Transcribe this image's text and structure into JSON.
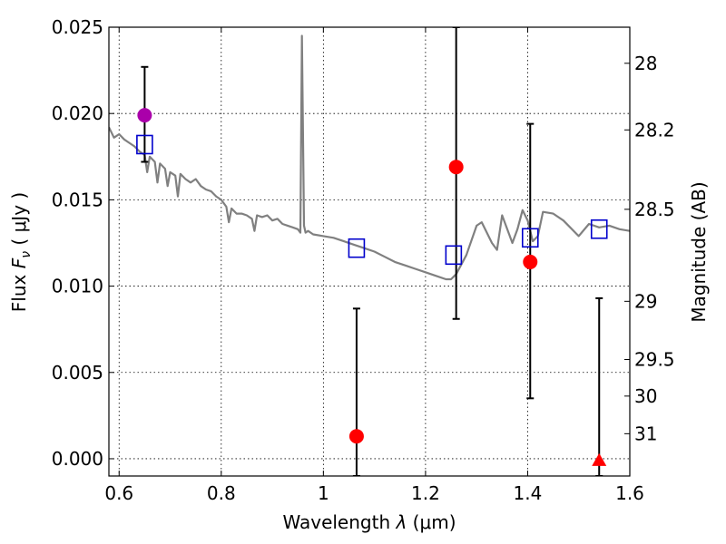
{
  "chart_data": {
    "type": "scatter",
    "xlabel_prefix": "Wavelength  ",
    "xlabel_var": "λ",
    "xlabel_units": " (μm)",
    "ylabel_prefix": "Flux  ",
    "ylabel_var": "F",
    "ylabel_sub": "ν",
    "ylabel_units": "  ( μJy )",
    "y2label": "Magnitude (AB)",
    "xlim": [
      0.58,
      1.6
    ],
    "ylim": [
      -0.001,
      0.025
    ],
    "grid": true,
    "x_ticks": [
      {
        "value": 0.6,
        "label": "0.6"
      },
      {
        "value": 0.8,
        "label": "0.8"
      },
      {
        "value": 1.0,
        "label": "1"
      },
      {
        "value": 1.2,
        "label": "1.2"
      },
      {
        "value": 1.4,
        "label": "1.4"
      },
      {
        "value": 1.6,
        "label": "1.6"
      }
    ],
    "y_ticks": [
      {
        "value": 0.0,
        "label": "0.000"
      },
      {
        "value": 0.005,
        "label": "0.005"
      },
      {
        "value": 0.01,
        "label": "0.010"
      },
      {
        "value": 0.015,
        "label": "0.015"
      },
      {
        "value": 0.02,
        "label": "0.020"
      },
      {
        "value": 0.025,
        "label": "0.025"
      }
    ],
    "y2_ticks": [
      {
        "mag": 28,
        "flux": 0.02291,
        "label": "28"
      },
      {
        "mag": 28.2,
        "flux": 0.01905,
        "label": "28.2"
      },
      {
        "mag": 28.5,
        "flux": 0.01445,
        "label": "28.5"
      },
      {
        "mag": 29,
        "flux": 0.00912,
        "label": "29"
      },
      {
        "mag": 29.5,
        "flux": 0.00575,
        "label": "29.5"
      },
      {
        "mag": 30,
        "flux": 0.00363,
        "label": "30"
      },
      {
        "mag": 31,
        "flux": 0.00145,
        "label": "31"
      }
    ],
    "series": [
      {
        "name": "model-spectrum",
        "kind": "line",
        "color": "#808080",
        "points": [
          [
            0.58,
            0.0192
          ],
          [
            0.59,
            0.0186
          ],
          [
            0.6,
            0.0188
          ],
          [
            0.61,
            0.0185
          ],
          [
            0.62,
            0.0183
          ],
          [
            0.63,
            0.0181
          ],
          [
            0.64,
            0.0178
          ],
          [
            0.65,
            0.0176
          ],
          [
            0.655,
            0.0166
          ],
          [
            0.66,
            0.0175
          ],
          [
            0.67,
            0.0172
          ],
          [
            0.675,
            0.016
          ],
          [
            0.68,
            0.0171
          ],
          [
            0.69,
            0.0168
          ],
          [
            0.695,
            0.0158
          ],
          [
            0.7,
            0.0166
          ],
          [
            0.71,
            0.0164
          ],
          [
            0.715,
            0.0152
          ],
          [
            0.72,
            0.0165
          ],
          [
            0.73,
            0.0162
          ],
          [
            0.74,
            0.016
          ],
          [
            0.75,
            0.0162
          ],
          [
            0.76,
            0.0158
          ],
          [
            0.77,
            0.0156
          ],
          [
            0.78,
            0.0155
          ],
          [
            0.79,
            0.0152
          ],
          [
            0.8,
            0.015
          ],
          [
            0.81,
            0.0146
          ],
          [
            0.815,
            0.0137
          ],
          [
            0.82,
            0.0145
          ],
          [
            0.83,
            0.0142
          ],
          [
            0.84,
            0.0142
          ],
          [
            0.85,
            0.0141
          ],
          [
            0.86,
            0.0139
          ],
          [
            0.865,
            0.0132
          ],
          [
            0.87,
            0.0141
          ],
          [
            0.88,
            0.014
          ],
          [
            0.89,
            0.0141
          ],
          [
            0.9,
            0.0138
          ],
          [
            0.91,
            0.0139
          ],
          [
            0.92,
            0.0136
          ],
          [
            0.93,
            0.0135
          ],
          [
            0.94,
            0.0134
          ],
          [
            0.95,
            0.0133
          ],
          [
            0.955,
            0.0131
          ],
          [
            0.958,
            0.0245
          ],
          [
            0.962,
            0.0135
          ],
          [
            0.965,
            0.0131
          ],
          [
            0.97,
            0.0132
          ],
          [
            0.98,
            0.013
          ],
          [
            1.0,
            0.0129
          ],
          [
            1.02,
            0.0128
          ],
          [
            1.04,
            0.0126
          ],
          [
            1.06,
            0.0124
          ],
          [
            1.08,
            0.0122
          ],
          [
            1.1,
            0.012
          ],
          [
            1.12,
            0.0117
          ],
          [
            1.14,
            0.0114
          ],
          [
            1.16,
            0.0112
          ],
          [
            1.18,
            0.011
          ],
          [
            1.2,
            0.0108
          ],
          [
            1.22,
            0.0106
          ],
          [
            1.24,
            0.0104
          ],
          [
            1.25,
            0.0104
          ],
          [
            1.26,
            0.0107
          ],
          [
            1.28,
            0.0118
          ],
          [
            1.3,
            0.0135
          ],
          [
            1.31,
            0.0137
          ],
          [
            1.33,
            0.0125
          ],
          [
            1.34,
            0.0121
          ],
          [
            1.35,
            0.0141
          ],
          [
            1.37,
            0.0125
          ],
          [
            1.38,
            0.0133
          ],
          [
            1.39,
            0.0144
          ],
          [
            1.4,
            0.0138
          ],
          [
            1.41,
            0.0126
          ],
          [
            1.42,
            0.0129
          ],
          [
            1.43,
            0.0143
          ],
          [
            1.45,
            0.0142
          ],
          [
            1.47,
            0.0138
          ],
          [
            1.5,
            0.0129
          ],
          [
            1.52,
            0.0136
          ],
          [
            1.54,
            0.0134
          ],
          [
            1.56,
            0.0135
          ],
          [
            1.58,
            0.0133
          ],
          [
            1.6,
            0.0132
          ]
        ]
      },
      {
        "name": "model-photometry",
        "kind": "open-square",
        "color": "#0000cc",
        "points": [
          [
            0.65,
            0.0182
          ],
          [
            1.065,
            0.0122
          ],
          [
            1.255,
            0.0118
          ],
          [
            1.405,
            0.0128
          ],
          [
            1.54,
            0.0133
          ]
        ]
      },
      {
        "name": "observed-photometry",
        "kind": "filled-circle",
        "points": [
          {
            "x": 0.65,
            "y": 0.0199,
            "yerr_low": 0.0172,
            "yerr_high": 0.0227,
            "color": "#aa00aa"
          },
          {
            "x": 1.065,
            "y": 0.0013,
            "yerr_low": -0.001,
            "yerr_high": 0.0087,
            "color": "#ff0000"
          },
          {
            "x": 1.26,
            "y": 0.0169,
            "yerr_low": 0.0081,
            "yerr_high": 0.025,
            "color": "#ff0000"
          },
          {
            "x": 1.405,
            "y": 0.0114,
            "yerr_low": 0.0035,
            "yerr_high": 0.0194,
            "color": "#ff0000"
          }
        ]
      },
      {
        "name": "upper-limit",
        "kind": "filled-triangle",
        "points": [
          {
            "x": 1.54,
            "y": -0.0001,
            "yerr_low": -0.001,
            "yerr_high": 0.0093,
            "color": "#ff0000"
          }
        ]
      }
    ]
  }
}
